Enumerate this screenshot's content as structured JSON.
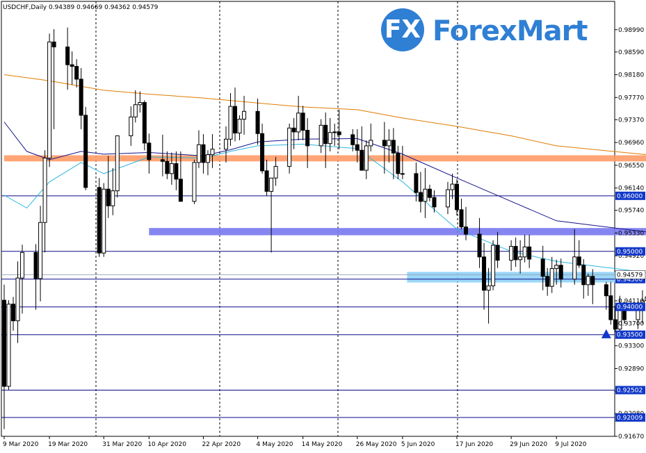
{
  "header": {
    "symbol": "USDCHF,Daily",
    "ohlc": "0.94389 0.94669 0.94362 0.94579"
  },
  "brand": {
    "mark": "FX",
    "name": "ForexMart"
  },
  "colors": {
    "bull": "#ffffff",
    "bear": "#000000",
    "ma_orange": "#e07b00",
    "ma_navy": "#13138c",
    "ma_cyan": "#2bb5e0",
    "level": "#0a0a8a",
    "price_blue": "#1238c8",
    "zone_orange": "#ff9b66",
    "zone_purple": "#7878f0",
    "zone_lightblue": "#8fd1f7"
  },
  "chart_data": {
    "type": "candlestick",
    "ylim": [
      0.9167,
      0.9915
    ],
    "yticks": [
      "0.98990",
      "0.98590",
      "0.98180",
      "0.97770",
      "0.97370",
      "0.96960",
      "0.96550",
      "0.96140",
      "0.95740",
      "0.95330",
      "0.94920",
      "0.94110",
      "0.93700",
      "0.93300",
      "0.92890",
      "0.92480",
      "0.92080",
      "0.91670"
    ],
    "xticks": [
      "9 Mar 2020",
      "19 Mar 2020",
      "31 Mar 2020",
      "10 Apr 2020",
      "22 Apr 2020",
      "4 May 2020",
      "14 May 2020",
      "26 May 2020",
      "5 Jun 2020",
      "17 Jun 2020",
      "29 Jun 2020",
      "9 Jul 2020"
    ],
    "levels": [
      {
        "value": 0.96,
        "label": "0.96000"
      },
      {
        "value": 0.95,
        "label": "0.95000"
      },
      {
        "value": 0.945,
        "label": "0.94500"
      },
      {
        "value": 0.94,
        "label": "0.94000"
      },
      {
        "value": 0.935,
        "label": "0.93500"
      },
      {
        "value": 0.92502,
        "label": "0.92502"
      },
      {
        "value": 0.92009,
        "label": "0.92009"
      }
    ],
    "current_price": {
      "value": 0.94579,
      "label": "0.94579"
    },
    "zones": [
      {
        "name": "orange",
        "start": "9 Mar 2020",
        "end": "2 Aug 2020",
        "y1": 0.9662,
        "y2": 0.9673
      },
      {
        "name": "purple",
        "start": "10 Apr 2020",
        "end": "1 Aug 2020",
        "y1": 0.9529,
        "y2": 0.9542
      },
      {
        "name": "lightblue",
        "start": "6 Jun 2020",
        "end": "24 Jul 2020",
        "y1": 0.9444,
        "y2": 0.9463
      }
    ],
    "marker": {
      "type": "triangle-up",
      "date": "20 Jul 2020",
      "value": 0.9351
    },
    "ohlc": [
      [
        "9 Mar 2020",
        0.9412,
        0.944,
        0.918,
        0.9257
      ],
      [
        "10 Mar 2020",
        0.9257,
        0.9412,
        0.9251,
        0.9405
      ],
      [
        "11 Mar 2020",
        0.9405,
        0.9418,
        0.9357,
        0.9375
      ],
      [
        "12 Mar 2020",
        0.9375,
        0.9482,
        0.9335,
        0.9452
      ],
      [
        "13 Mar 2020",
        0.9452,
        0.9512,
        0.9388,
        0.9498
      ],
      [
        "16 Mar 2020",
        0.9498,
        0.9513,
        0.9395,
        0.9451
      ],
      [
        "17 Mar 2020",
        0.9451,
        0.9582,
        0.941,
        0.9552
      ],
      [
        "18 Mar 2020",
        0.9552,
        0.9682,
        0.9498,
        0.9668
      ],
      [
        "19 Mar 2020",
        0.9668,
        0.9892,
        0.9652,
        0.9877
      ],
      [
        "20 Mar 2020",
        0.9877,
        0.99,
        0.972,
        0.9868
      ],
      [
        "23 Mar 2020",
        0.9868,
        0.9903,
        0.9791,
        0.9836
      ],
      [
        "24 Mar 2020",
        0.9836,
        0.986,
        0.98,
        0.9833
      ],
      [
        "25 Mar 2020",
        0.9833,
        0.9846,
        0.9795,
        0.981
      ],
      [
        "26 Mar 2020",
        0.981,
        0.983,
        0.972,
        0.9745
      ],
      [
        "27 Mar 2020",
        0.9745,
        0.976,
        0.961,
        0.9615
      ],
      [
        "30 Mar 2020",
        0.9615,
        0.9632,
        0.949,
        0.9497
      ],
      [
        "31 Mar 2020",
        0.9497,
        0.9623,
        0.949,
        0.9612
      ],
      [
        "1 Apr 2020",
        0.9612,
        0.9672,
        0.956,
        0.9582
      ],
      [
        "2 Apr 2020",
        0.9582,
        0.965,
        0.9565,
        0.9609
      ],
      [
        "3 Apr 2020",
        0.9609,
        0.9708,
        0.9597,
        0.9708
      ],
      [
        "6 Apr 2020",
        0.9708,
        0.9761,
        0.969,
        0.9742
      ],
      [
        "7 Apr 2020",
        0.9742,
        0.979,
        0.9732,
        0.9764
      ],
      [
        "8 Apr 2020",
        0.9764,
        0.9788,
        0.975,
        0.9768
      ],
      [
        "9 Apr 2020",
        0.9768,
        0.9772,
        0.9682,
        0.9695
      ],
      [
        "10 Apr 2020",
        0.9695,
        0.9712,
        0.964,
        0.9665
      ],
      [
        "13 Apr 2020",
        0.9665,
        0.971,
        0.9635,
        0.9662
      ],
      [
        "14 Apr 2020",
        0.9662,
        0.968,
        0.963,
        0.964
      ],
      [
        "15 Apr 2020",
        0.964,
        0.9678,
        0.962,
        0.9658
      ],
      [
        "16 Apr 2020",
        0.9658,
        0.968,
        0.961,
        0.963
      ],
      [
        "17 Apr 2020",
        0.963,
        0.968,
        0.959,
        0.959
      ],
      [
        "20 Apr 2020",
        0.959,
        0.9665,
        0.9585,
        0.966
      ],
      [
        "21 Apr 2020",
        0.966,
        0.9718,
        0.965,
        0.9692
      ],
      [
        "22 Apr 2020",
        0.9692,
        0.9711,
        0.964,
        0.966
      ],
      [
        "23 Apr 2020",
        0.966,
        0.9682,
        0.9637,
        0.9674
      ],
      [
        "24 Apr 2020",
        0.9674,
        0.9711,
        0.965,
        0.9684
      ],
      [
        "27 Apr 2020",
        0.9684,
        0.9725,
        0.966,
        0.9702
      ],
      [
        "28 Apr 2020",
        0.9702,
        0.9785,
        0.969,
        0.9761
      ],
      [
        "29 Apr 2020",
        0.9761,
        0.9795,
        0.9698,
        0.9713
      ],
      [
        "30 Apr 2020",
        0.9713,
        0.9745,
        0.97,
        0.9738
      ],
      [
        "1 May 2020",
        0.9738,
        0.978,
        0.971,
        0.9752
      ],
      [
        "4 May 2020",
        0.9752,
        0.9775,
        0.9692,
        0.9712
      ],
      [
        "5 May 2020",
        0.9712,
        0.973,
        0.964,
        0.9645
      ],
      [
        "6 May 2020",
        0.9645,
        0.9665,
        0.96,
        0.9608
      ],
      [
        "7 May 2020",
        0.9608,
        0.9632,
        0.9498,
        0.9632
      ],
      [
        "8 May 2020",
        0.9632,
        0.967,
        0.9618,
        0.9653
      ],
      [
        "11 May 2020",
        0.9653,
        0.973,
        0.964,
        0.9722
      ],
      [
        "12 May 2020",
        0.9722,
        0.974,
        0.9684,
        0.9715
      ],
      [
        "13 May 2020",
        0.9715,
        0.978,
        0.97,
        0.9749
      ],
      [
        "14 May 2020",
        0.9749,
        0.9762,
        0.97,
        0.9718
      ],
      [
        "15 May 2020",
        0.9718,
        0.974,
        0.965,
        0.969
      ],
      [
        "18 May 2020",
        0.969,
        0.9738,
        0.9677,
        0.9727
      ],
      [
        "19 May 2020",
        0.9727,
        0.975,
        0.965,
        0.9694
      ],
      [
        "20 May 2020",
        0.9694,
        0.974,
        0.968,
        0.9714
      ],
      [
        "21 May 2020",
        0.9714,
        0.973,
        0.969,
        0.9715
      ],
      [
        "22 May 2020",
        0.9715,
        0.9755,
        0.9684,
        0.971
      ],
      [
        "25 May 2020",
        0.971,
        0.972,
        0.968,
        0.9692
      ],
      [
        "26 May 2020",
        0.9692,
        0.972,
        0.966,
        0.9682
      ],
      [
        "27 May 2020",
        0.9682,
        0.9725,
        0.965,
        0.9646
      ],
      [
        "28 May 2020",
        0.9646,
        0.97,
        0.963,
        0.969
      ],
      [
        "29 May 2020",
        0.969,
        0.973,
        0.968,
        0.97
      ],
      [
        "1 Jun 2020",
        0.97,
        0.9733,
        0.964,
        0.969
      ],
      [
        "2 Jun 2020",
        0.969,
        0.972,
        0.966,
        0.97
      ],
      [
        "3 Jun 2020",
        0.97,
        0.9722,
        0.963,
        0.9677
      ],
      [
        "4 Jun 2020",
        0.9677,
        0.969,
        0.963,
        0.964
      ],
      [
        "5 Jun 2020",
        0.964,
        0.969,
        0.963,
        0.964
      ],
      [
        "8 Jun 2020",
        0.964,
        0.966,
        0.959,
        0.9606
      ],
      [
        "9 Jun 2020",
        0.9606,
        0.9643,
        0.957,
        0.959
      ],
      [
        "10 Jun 2020",
        0.959,
        0.965,
        0.956,
        0.9612
      ],
      [
        "11 Jun 2020",
        0.9612,
        0.962,
        0.959,
        0.9597
      ],
      [
        "12 Jun 2020",
        0.9597,
        0.961,
        0.957,
        0.958
      ],
      [
        "15 Jun 2020",
        0.958,
        0.9625,
        0.9567,
        0.9611
      ],
      [
        "16 Jun 2020",
        0.9611,
        0.964,
        0.9594,
        0.9621
      ],
      [
        "17 Jun 2020",
        0.9621,
        0.963,
        0.9565,
        0.9575
      ],
      [
        "18 Jun 2020",
        0.9575,
        0.9595,
        0.954,
        0.9544
      ],
      [
        "19 Jun 2020",
        0.9544,
        0.958,
        0.952,
        0.9531
      ],
      [
        "22 Jun 2020",
        0.9531,
        0.956,
        0.947,
        0.949
      ],
      [
        "23 Jun 2020",
        0.949,
        0.9515,
        0.9395,
        0.943
      ],
      [
        "24 Jun 2020",
        0.943,
        0.947,
        0.937,
        0.9438
      ],
      [
        "25 Jun 2020",
        0.9438,
        0.952,
        0.943,
        0.9511
      ],
      [
        "26 Jun 2020",
        0.9511,
        0.9535,
        0.947,
        0.9484
      ],
      [
        "29 Jun 2020",
        0.9484,
        0.952,
        0.9465,
        0.9509
      ],
      [
        "30 Jun 2020",
        0.9509,
        0.9525,
        0.9472,
        0.9485
      ],
      [
        "1 Jul 2020",
        0.9485,
        0.952,
        0.946,
        0.949
      ],
      [
        "2 Jul 2020",
        0.949,
        0.953,
        0.948,
        0.9508
      ],
      [
        "3 Jul 2020",
        0.9508,
        0.953,
        0.947,
        0.9486
      ],
      [
        "6 Jul 2020",
        0.9486,
        0.951,
        0.943,
        0.9455
      ],
      [
        "7 Jul 2020",
        0.9455,
        0.947,
        0.942,
        0.9437
      ],
      [
        "8 Jul 2020",
        0.9437,
        0.949,
        0.9425,
        0.9469
      ],
      [
        "9 Jul 2020",
        0.9469,
        0.9485,
        0.944,
        0.9475
      ],
      [
        "10 Jul 2020",
        0.9475,
        0.9487,
        0.9435,
        0.945
      ],
      [
        "13 Jul 2020",
        0.945,
        0.954,
        0.944,
        0.949
      ],
      [
        "14 Jul 2020",
        0.949,
        0.952,
        0.947,
        0.9475
      ],
      [
        "15 Jul 2020",
        0.9475,
        0.9486,
        0.9415,
        0.944
      ],
      [
        "16 Jul 2020",
        0.944,
        0.946,
        0.942,
        0.9455
      ],
      [
        "17 Jul 2020",
        0.9455,
        0.9468,
        0.9405,
        0.944
      ],
      [
        "20 Jul 2020",
        0.944,
        0.9445,
        0.9395,
        0.942
      ],
      [
        "21 Jul 2020",
        0.942,
        0.9445,
        0.9368,
        0.9377
      ],
      [
        "22 Jul 2020",
        0.9377,
        0.9402,
        0.9355,
        0.936
      ],
      [
        "23 Jul 2020",
        0.936,
        0.942,
        0.935,
        0.94
      ],
      [
        "24 Jul 2020",
        0.94,
        0.941,
        0.937,
        0.9377
      ],
      [
        "27 Jul 2020",
        0.9377,
        0.941,
        0.936,
        0.9398
      ],
      [
        "28 Jul 2020",
        0.9398,
        0.943,
        0.937,
        0.9411
      ],
      [
        "29 Jul 2020",
        0.9411,
        0.943,
        0.938,
        0.9418
      ],
      [
        "30 Jul 2020",
        0.9418,
        0.9424,
        0.937,
        0.9384
      ],
      [
        "31 Jul 2020",
        0.9384,
        0.947,
        0.937,
        0.9439
      ],
      [
        "3 Aug 2020",
        0.94389,
        0.94669,
        0.94362,
        0.94579
      ]
    ],
    "ma_series": [
      {
        "color": "ma_orange",
        "points": [
          [
            "9 Mar 2020",
            0.9818
          ],
          [
            "19 Mar 2020",
            0.9807
          ],
          [
            "31 Mar 2020",
            0.979
          ],
          [
            "10 Apr 2020",
            0.9783
          ],
          [
            "22 Apr 2020",
            0.9776
          ],
          [
            "4 May 2020",
            0.9767
          ],
          [
            "14 May 2020",
            0.976
          ],
          [
            "26 May 2020",
            0.9755
          ],
          [
            "5 Jun 2020",
            0.974
          ],
          [
            "17 Jun 2020",
            0.9725
          ],
          [
            "29 Jun 2020",
            0.9708
          ],
          [
            "9 Jul 2020",
            0.969
          ],
          [
            "3 Aug 2020",
            0.967
          ]
        ]
      },
      {
        "color": "ma_navy",
        "points": [
          [
            "9 Mar 2020",
            0.9733
          ],
          [
            "14 Mar 2020",
            0.968
          ],
          [
            "19 Mar 2020",
            0.9665
          ],
          [
            "26 Mar 2020",
            0.968
          ],
          [
            "31 Mar 2020",
            0.9675
          ],
          [
            "10 Apr 2020",
            0.9678
          ],
          [
            "22 Apr 2020",
            0.9672
          ],
          [
            "28 Apr 2020",
            0.9683
          ],
          [
            "4 May 2020",
            0.9697
          ],
          [
            "14 May 2020",
            0.9702
          ],
          [
            "26 May 2020",
            0.9703
          ],
          [
            "5 Jun 2020",
            0.9675
          ],
          [
            "17 Jun 2020",
            0.9632
          ],
          [
            "29 Jun 2020",
            0.959
          ],
          [
            "9 Jul 2020",
            0.9555
          ],
          [
            "3 Aug 2020",
            0.953
          ]
        ]
      },
      {
        "color": "ma_cyan",
        "points": [
          [
            "9 Mar 2020",
            0.9601
          ],
          [
            "14 Mar 2020",
            0.9578
          ],
          [
            "19 Mar 2020",
            0.9625
          ],
          [
            "26 Mar 2020",
            0.966
          ],
          [
            "31 Mar 2020",
            0.964
          ],
          [
            "10 Apr 2020",
            0.967
          ],
          [
            "22 Apr 2020",
            0.9668
          ],
          [
            "28 Apr 2020",
            0.968
          ],
          [
            "4 May 2020",
            0.969
          ],
          [
            "14 May 2020",
            0.9693
          ],
          [
            "26 May 2020",
            0.9685
          ],
          [
            "5 Jun 2020",
            0.9625
          ],
          [
            "17 Jun 2020",
            0.954
          ],
          [
            "29 Jun 2020",
            0.95
          ],
          [
            "9 Jul 2020",
            0.9482
          ],
          [
            "3 Aug 2020",
            0.9457
          ]
        ]
      }
    ],
    "grid": "vertical-dotted"
  }
}
